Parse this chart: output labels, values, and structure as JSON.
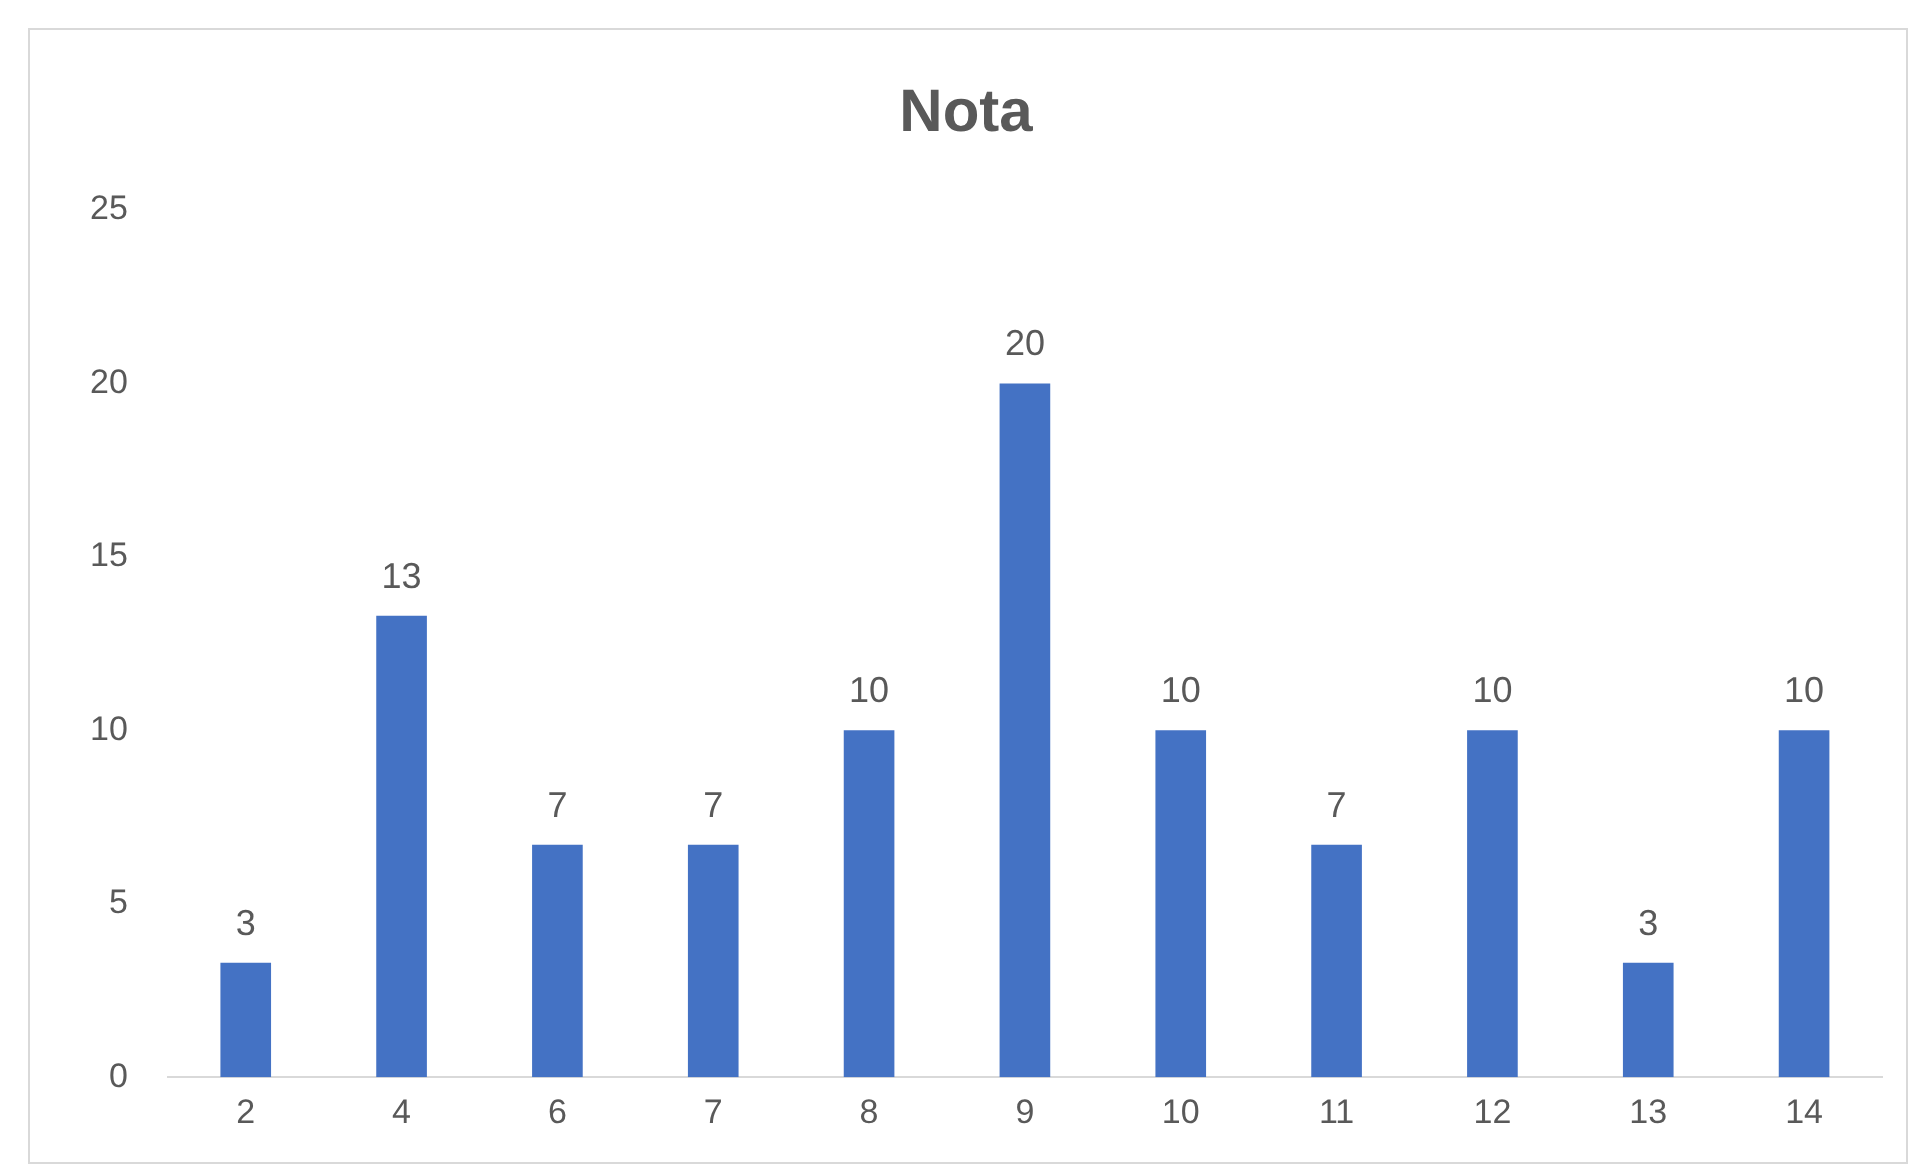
{
  "chart_data": {
    "type": "bar",
    "title": "Nota",
    "categories": [
      "2",
      "4",
      "6",
      "7",
      "8",
      "9",
      "10",
      "11",
      "12",
      "13",
      "14"
    ],
    "values": [
      3.3,
      13.3,
      6.7,
      6.7,
      10,
      20,
      10,
      6.7,
      10,
      3.3,
      10
    ],
    "value_labels": [
      "3",
      "13",
      "7",
      "7",
      "10",
      "20",
      "10",
      "7",
      "10",
      "3",
      "10"
    ],
    "color": "#4472c4",
    "ylim": [
      0,
      25
    ],
    "yticks": [
      0,
      5,
      10,
      15,
      20,
      25
    ],
    "grid": false,
    "legend": false
  }
}
